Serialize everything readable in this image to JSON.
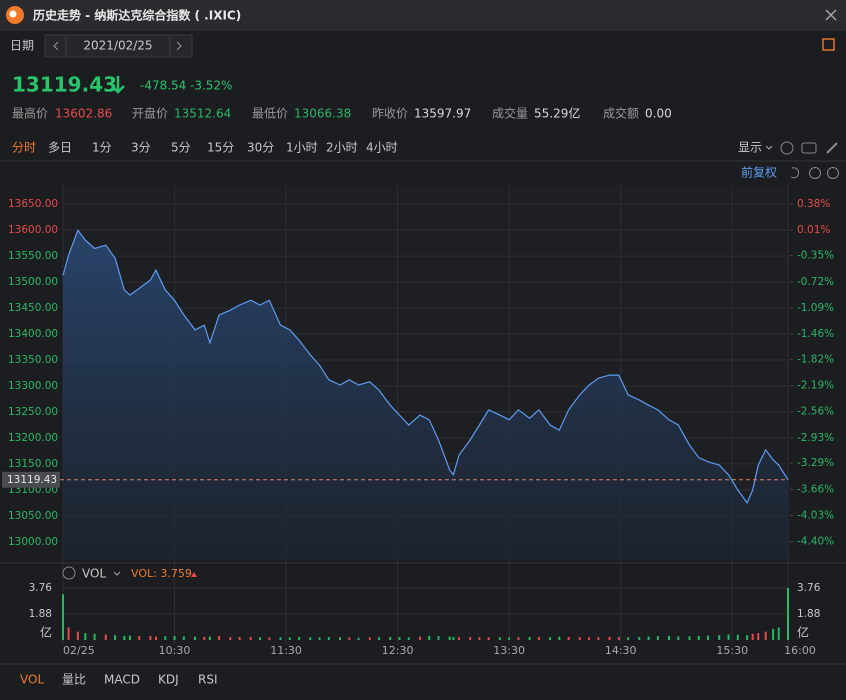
{
  "header": {
    "title": "历史走势 - 纳斯达克综合指数 ( .IXIC)"
  },
  "date_bar": {
    "label": "日期",
    "date": "2021/02/25"
  },
  "quote": {
    "price": 13119.43,
    "change": -478.54,
    "change_pct": "-3.52%"
  },
  "stats": [
    {
      "label": "最高价",
      "value": 13602.86
    },
    {
      "label": "开盘价",
      "value": 13512.64
    },
    {
      "label": "最低价",
      "value": 13066.38
    },
    {
      "label": "昨收价",
      "value": 13597.97
    },
    {
      "label": "成交量",
      "value": "55.29亿"
    },
    {
      "label": "成交额",
      "value": "0.00"
    }
  ],
  "periods": [
    "分时",
    "多日",
    "1分",
    "3分",
    "5分",
    "15分",
    "30分",
    "1小时",
    "2小时",
    "4小时"
  ],
  "toolbar": {
    "display": "显示",
    "adjust": "前复权"
  },
  "volume_panel": {
    "indicator": "VOL",
    "reading": "VOL: 3.759",
    "unit": "亿"
  },
  "bottom_tabs": [
    "VOL",
    "量比",
    "MACD",
    "KDJ",
    "RSI"
  ],
  "chart_data": [
    {
      "type": "line",
      "x": [
        0,
        3,
        8,
        12,
        17,
        23,
        28,
        33,
        36,
        41,
        47,
        50,
        55,
        60,
        65,
        71,
        76,
        79,
        84,
        90,
        95,
        101,
        106,
        111,
        117,
        122,
        127,
        133,
        138,
        143,
        149,
        154,
        159,
        165,
        170,
        176,
        181,
        186,
        192,
        197,
        202,
        208,
        210,
        213,
        219,
        224,
        229,
        235,
        240,
        245,
        251,
        256,
        262,
        267,
        272,
        278,
        283,
        288,
        294,
        299,
        304,
        310,
        315,
        320,
        326,
        331,
        337,
        342,
        347,
        353,
        358,
        363,
        368,
        371,
        374,
        378,
        382,
        385,
        390
      ],
      "values": [
        13513,
        13552,
        13600,
        13581,
        13565,
        13571,
        13546,
        13485,
        13475,
        13488,
        13504,
        13523,
        13485,
        13465,
        13437,
        13408,
        13417,
        13383,
        13437,
        13446,
        13456,
        13465,
        13456,
        13465,
        13417,
        13408,
        13388,
        13360,
        13340,
        13312,
        13302,
        13312,
        13302,
        13308,
        13292,
        13263,
        13244,
        13225,
        13244,
        13235,
        13196,
        13138,
        13129,
        13167,
        13196,
        13225,
        13254,
        13244,
        13235,
        13254,
        13238,
        13254,
        13225,
        13215,
        13254,
        13283,
        13302,
        13315,
        13321,
        13321,
        13283,
        13273,
        13263,
        13254,
        13235,
        13225,
        13186,
        13162,
        13154,
        13148,
        13129,
        13100,
        13075,
        13100,
        13148,
        13177,
        13158,
        13148,
        13119.43
      ],
      "color": "#5d9cf0",
      "xlim": [
        0,
        390
      ],
      "xticks": [
        {
          "value": 0,
          "label": "02/25"
        },
        {
          "value": 60,
          "label": "10:30"
        },
        {
          "value": 120,
          "label": "11:30"
        },
        {
          "value": 180,
          "label": "12:30"
        },
        {
          "value": 240,
          "label": "13:30"
        },
        {
          "value": 300,
          "label": "14:30"
        },
        {
          "value": 360,
          "label": "15:30"
        },
        {
          "value": 390,
          "label": "16:00"
        }
      ],
      "ylim": [
        12965,
        13687
      ],
      "yticks": [
        {
          "value": 13000,
          "label": "13000.00"
        },
        {
          "value": 13050,
          "label": "13050.00"
        },
        {
          "value": 13100,
          "label": "13100.00"
        },
        {
          "value": 13150,
          "label": "13150.00"
        },
        {
          "value": 13200,
          "label": "13200.00"
        },
        {
          "value": 13250,
          "label": "13250.00"
        },
        {
          "value": 13300,
          "label": "13300.00"
        },
        {
          "value": 13350,
          "label": "13350.00"
        },
        {
          "value": 13400,
          "label": "13400.00"
        },
        {
          "value": 13450,
          "label": "13450.00"
        },
        {
          "value": 13500,
          "label": "13500.00"
        },
        {
          "value": 13550,
          "label": "13550.00"
        },
        {
          "value": 13600,
          "label": "13600.00"
        },
        {
          "value": 13650,
          "label": "13650.00"
        }
      ],
      "y2lim": [
        -4.66,
        0.65
      ],
      "y2ticks": [
        {
          "value": -4.4,
          "label": "-4.40%"
        },
        {
          "value": -4.03,
          "label": "-4.03%"
        },
        {
          "value": -3.66,
          "label": "-3.66%"
        },
        {
          "value": -3.29,
          "label": "-3.29%"
        },
        {
          "value": -2.93,
          "label": "-2.93%"
        },
        {
          "value": -2.56,
          "label": "-2.56%"
        },
        {
          "value": -2.19,
          "label": "-2.19%"
        },
        {
          "value": -1.82,
          "label": "-1.82%"
        },
        {
          "value": -1.46,
          "label": "-1.46%"
        },
        {
          "value": -1.09,
          "label": "-1.09%"
        },
        {
          "value": -0.72,
          "label": "-0.72%"
        },
        {
          "value": -0.35,
          "label": "-0.35%"
        },
        {
          "value": 0.01,
          "label": "0.01%"
        },
        {
          "value": 0.38,
          "label": "0.38%"
        }
      ],
      "grid": true
    },
    {
      "type": "bar",
      "x": [
        0,
        3,
        8,
        12,
        17,
        23,
        28,
        33,
        36,
        41,
        47,
        50,
        55,
        60,
        65,
        71,
        76,
        79,
        84,
        90,
        95,
        101,
        106,
        111,
        117,
        122,
        127,
        133,
        138,
        143,
        149,
        154,
        159,
        165,
        170,
        176,
        181,
        186,
        192,
        197,
        202,
        208,
        210,
        213,
        219,
        224,
        229,
        235,
        240,
        245,
        251,
        256,
        262,
        267,
        272,
        278,
        283,
        288,
        294,
        299,
        304,
        310,
        315,
        320,
        326,
        331,
        337,
        342,
        347,
        353,
        358,
        363,
        368,
        371,
        374,
        378,
        382,
        385,
        390
      ],
      "values": [
        3.3,
        0.9,
        0.6,
        0.5,
        0.45,
        0.4,
        0.35,
        0.3,
        0.32,
        0.28,
        0.3,
        0.25,
        0.27,
        0.3,
        0.26,
        0.24,
        0.22,
        0.25,
        0.3,
        0.2,
        0.22,
        0.21,
        0.2,
        0.19,
        0.2,
        0.18,
        0.22,
        0.2,
        0.19,
        0.21,
        0.2,
        0.18,
        0.17,
        0.19,
        0.2,
        0.22,
        0.21,
        0.2,
        0.24,
        0.3,
        0.28,
        0.25,
        0.22,
        0.2,
        0.21,
        0.2,
        0.19,
        0.2,
        0.18,
        0.2,
        0.21,
        0.22,
        0.2,
        0.24,
        0.22,
        0.2,
        0.19,
        0.2,
        0.22,
        0.21,
        0.2,
        0.22,
        0.25,
        0.28,
        0.3,
        0.26,
        0.27,
        0.3,
        0.32,
        0.35,
        0.4,
        0.38,
        0.36,
        0.45,
        0.5,
        0.6,
        0.8,
        0.9,
        3.759
      ],
      "xlim": [
        0,
        390
      ],
      "ylim": [
        0,
        3.9
      ],
      "yticks": [
        1.88,
        3.76
      ],
      "up_color": "#e84a4a",
      "down_color": "#27b865"
    }
  ]
}
